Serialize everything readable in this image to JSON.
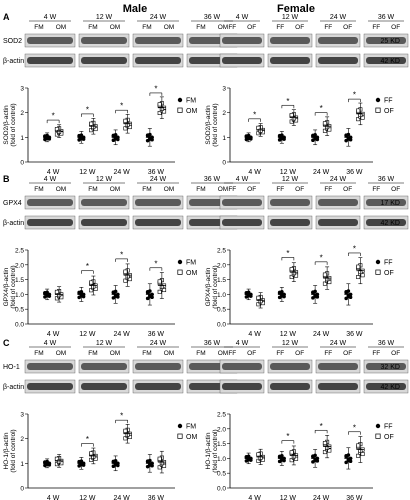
{
  "headers": {
    "male": "Male",
    "female": "Female"
  },
  "kd": {
    "sod2": "25 KD",
    "gpx4": "17 KD",
    "ho1": "32 KD",
    "actin": "42 KD"
  },
  "weeks": [
    "4 W",
    "12 W",
    "24 W",
    "36 W"
  ],
  "panels": [
    {
      "letter": "A",
      "protein": "SOD2",
      "actin": "β-actin",
      "kd": "25 KD",
      "male_ylabel": "SOD2/β-actin",
      "female_ylabel": "SOD2/β-actin",
      "sub": "(fold of control)"
    },
    {
      "letter": "B",
      "protein": "GPX4",
      "actin": "β-actin",
      "kd": "17 KD",
      "male_ylabel": "GPX4/β-actin",
      "female_ylabel": "GPX4/β-actin",
      "sub": "(fold of control)"
    },
    {
      "letter": "C",
      "protein": "HO-1",
      "actin": "β-actin",
      "kd": "32 KD",
      "male_ylabel": "HO-1/β-actin",
      "female_ylabel": "HO-1/β-actin",
      "sub": "(fold of control)"
    }
  ],
  "legend": {
    "male": [
      "FM",
      "OM"
    ],
    "female": [
      "FF",
      "OF"
    ]
  },
  "lane_labels": {
    "male": [
      "FM",
      "OM"
    ],
    "female": [
      "FF",
      "OF"
    ]
  },
  "sig_marker": "*",
  "chart_data": [
    {
      "type": "scatter",
      "panel": "A",
      "sex": "male",
      "categories": [
        "4 W",
        "12 W",
        "24 W",
        "36 W"
      ],
      "ylim": [
        0,
        3
      ],
      "yticks": [
        0,
        1,
        2,
        3
      ],
      "series": [
        {
          "name": "FM",
          "values": [
            1.0,
            1.0,
            1.0,
            1.0
          ]
        },
        {
          "name": "OM",
          "values": [
            1.25,
            1.45,
            1.55,
            2.2
          ]
        }
      ],
      "significant": [
        true,
        true,
        true,
        true
      ]
    },
    {
      "type": "scatter",
      "panel": "A",
      "sex": "female",
      "categories": [
        "4 W",
        "12 W",
        "24 W",
        "36 W"
      ],
      "ylim": [
        0,
        3
      ],
      "yticks": [
        0,
        1,
        2,
        3
      ],
      "series": [
        {
          "name": "FF",
          "values": [
            1.0,
            1.0,
            1.0,
            1.0
          ]
        },
        {
          "name": "OF",
          "values": [
            1.3,
            1.8,
            1.45,
            1.95
          ]
        }
      ],
      "significant": [
        true,
        true,
        true,
        true
      ]
    },
    {
      "type": "scatter",
      "panel": "B",
      "sex": "male",
      "categories": [
        "4 W",
        "12 W",
        "24 W",
        "36 W"
      ],
      "ylim": [
        0,
        2.5
      ],
      "yticks": [
        0.0,
        0.5,
        1.0,
        1.5,
        2.0,
        2.5
      ],
      "series": [
        {
          "name": "FM",
          "values": [
            1.0,
            1.0,
            1.0,
            1.0
          ]
        },
        {
          "name": "OM",
          "values": [
            1.0,
            1.3,
            1.65,
            1.3
          ]
        }
      ],
      "significant": [
        false,
        true,
        true,
        true
      ]
    },
    {
      "type": "scatter",
      "panel": "B",
      "sex": "female",
      "categories": [
        "4 W",
        "12 W",
        "24 W",
        "36 W"
      ],
      "ylim": [
        0,
        2.5
      ],
      "yticks": [
        0.0,
        0.5,
        1.0,
        1.5,
        2.0,
        2.5
      ],
      "series": [
        {
          "name": "FF",
          "values": [
            1.0,
            1.0,
            1.0,
            1.0
          ]
        },
        {
          "name": "OF",
          "values": [
            0.8,
            1.75,
            1.55,
            1.8
          ]
        }
      ],
      "significant": [
        false,
        true,
        true,
        true
      ]
    },
    {
      "type": "scatter",
      "panel": "C",
      "sex": "male",
      "categories": [
        "4 W",
        "12 W",
        "24 W",
        "36 W"
      ],
      "ylim": [
        0,
        3
      ],
      "yticks": [
        0,
        1,
        2,
        3
      ],
      "series": [
        {
          "name": "FM",
          "values": [
            1.0,
            1.0,
            1.0,
            1.0
          ]
        },
        {
          "name": "OM",
          "values": [
            1.1,
            1.3,
            2.2,
            1.05
          ]
        }
      ],
      "significant": [
        false,
        true,
        true,
        false
      ]
    },
    {
      "type": "scatter",
      "panel": "C",
      "sex": "female",
      "categories": [
        "4 W",
        "12 W",
        "24 W",
        "36 W"
      ],
      "ylim": [
        0,
        2.5
      ],
      "yticks": [
        0.0,
        0.5,
        1.0,
        1.5,
        2.0,
        2.5
      ],
      "series": [
        {
          "name": "FF",
          "values": [
            1.0,
            1.0,
            1.0,
            1.0
          ]
        },
        {
          "name": "OF",
          "values": [
            1.05,
            1.1,
            1.4,
            1.3
          ]
        }
      ],
      "significant": [
        false,
        true,
        true,
        true
      ]
    }
  ]
}
